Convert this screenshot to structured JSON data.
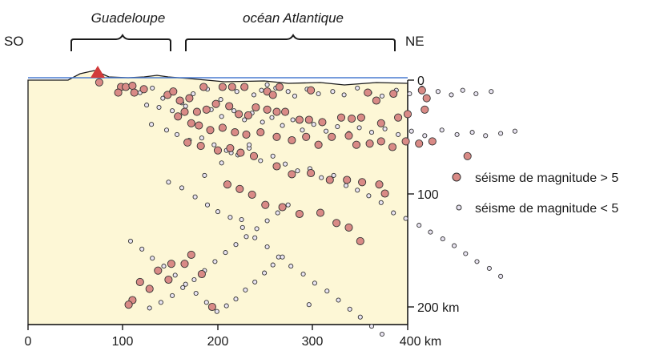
{
  "header": {
    "left_direction": "SO",
    "right_direction": "NE",
    "region_left": "Guadeloupe",
    "region_right": "océan Atlantique"
  },
  "axes": {
    "x_ticks": [
      "0",
      "100",
      "200",
      "300",
      "400 km"
    ],
    "y_ticks": [
      "0",
      "100",
      "200 km"
    ]
  },
  "legend": {
    "large_label": "séisme de magnitude > 5",
    "small_label": "séisme de magnitude < 5"
  },
  "colors": {
    "large_event": "#d98a86",
    "small_event": "#e9e4f2",
    "crust_fill": "#fdf7d6",
    "sea_line": "#4a7bd0",
    "volcano": "#d23b3b"
  },
  "chart_data": {
    "type": "scatter",
    "x_range_km": [
      0,
      400
    ],
    "depth_range_km": [
      0,
      210
    ],
    "volcano_x_km": 72,
    "series": [
      {
        "name": "séisme de magnitude > 5",
        "points": [
          [
            75,
            2
          ],
          [
            98,
            6
          ],
          [
            103,
            6
          ],
          [
            110,
            5
          ],
          [
            95,
            11
          ],
          [
            112,
            11
          ],
          [
            122,
            8
          ],
          [
            147,
            13
          ],
          [
            153,
            10
          ],
          [
            160,
            18
          ],
          [
            170,
            16
          ],
          [
            185,
            6
          ],
          [
            205,
            6
          ],
          [
            215,
            6
          ],
          [
            228,
            6
          ],
          [
            252,
            10
          ],
          [
            258,
            13
          ],
          [
            265,
            6
          ],
          [
            298,
            9
          ],
          [
            358,
            11
          ],
          [
            367,
            18
          ],
          [
            385,
            12
          ],
          [
            415,
            9
          ],
          [
            420,
            16
          ],
          [
            165,
            28
          ],
          [
            178,
            28
          ],
          [
            188,
            26
          ],
          [
            198,
            21
          ],
          [
            212,
            23
          ],
          [
            222,
            30
          ],
          [
            232,
            31
          ],
          [
            240,
            24
          ],
          [
            252,
            26
          ],
          [
            262,
            28
          ],
          [
            271,
            28
          ],
          [
            286,
            35
          ],
          [
            296,
            35
          ],
          [
            310,
            37
          ],
          [
            330,
            33
          ],
          [
            341,
            34
          ],
          [
            351,
            33
          ],
          [
            372,
            38
          ],
          [
            390,
            33
          ],
          [
            400,
            30
          ],
          [
            418,
            26
          ],
          [
            158,
            32
          ],
          [
            172,
            38
          ],
          [
            180,
            40
          ],
          [
            192,
            44
          ],
          [
            205,
            42
          ],
          [
            218,
            46
          ],
          [
            230,
            48
          ],
          [
            245,
            46
          ],
          [
            262,
            50
          ],
          [
            278,
            53
          ],
          [
            293,
            50
          ],
          [
            306,
            57
          ],
          [
            320,
            50
          ],
          [
            338,
            49
          ],
          [
            346,
            57
          ],
          [
            360,
            56
          ],
          [
            372,
            54
          ],
          [
            384,
            59
          ],
          [
            398,
            54
          ],
          [
            412,
            56
          ],
          [
            426,
            54
          ],
          [
            463,
            67
          ],
          [
            168,
            55
          ],
          [
            182,
            58
          ],
          [
            200,
            62
          ],
          [
            213,
            60
          ],
          [
            224,
            64
          ],
          [
            238,
            67
          ],
          [
            262,
            76
          ],
          [
            278,
            83
          ],
          [
            298,
            82
          ],
          [
            318,
            88
          ],
          [
            336,
            88
          ],
          [
            352,
            90
          ],
          [
            370,
            92
          ],
          [
            376,
            100
          ],
          [
            210,
            92
          ],
          [
            223,
            96
          ],
          [
            236,
            101
          ],
          [
            250,
            110
          ],
          [
            268,
            112
          ],
          [
            286,
            118
          ],
          [
            308,
            117
          ],
          [
            325,
            126
          ],
          [
            338,
            130
          ],
          [
            350,
            142
          ],
          [
            172,
            154
          ],
          [
            151,
            162
          ],
          [
            137,
            168
          ],
          [
            118,
            178
          ],
          [
            128,
            184
          ],
          [
            110,
            194
          ],
          [
            148,
            176
          ],
          [
            165,
            162
          ],
          [
            106,
            198
          ],
          [
            194,
            200
          ],
          [
            183,
            171
          ]
        ]
      },
      {
        "name": "séisme de magnitude < 5",
        "points": [
          [
            118,
            11
          ],
          [
            142,
            16
          ],
          [
            131,
            7
          ],
          [
            162,
            20
          ],
          [
            174,
            12
          ],
          [
            189,
            8
          ],
          [
            203,
            17
          ],
          [
            220,
            10
          ],
          [
            238,
            13
          ],
          [
            246,
            9
          ],
          [
            252,
            4
          ],
          [
            261,
            7
          ],
          [
            274,
            10
          ],
          [
            281,
            14
          ],
          [
            294,
            8
          ],
          [
            306,
            12
          ],
          [
            321,
            10
          ],
          [
            333,
            13
          ],
          [
            347,
            7
          ],
          [
            360,
            11
          ],
          [
            373,
            14
          ],
          [
            388,
            9
          ],
          [
            402,
            12
          ],
          [
            415,
            7
          ],
          [
            432,
            10
          ],
          [
            446,
            13
          ],
          [
            458,
            9
          ],
          [
            472,
            12
          ],
          [
            488,
            10
          ],
          [
            125,
            22
          ],
          [
            138,
            24
          ],
          [
            152,
            27
          ],
          [
            166,
            23
          ],
          [
            178,
            29
          ],
          [
            193,
            26
          ],
          [
            204,
            32
          ],
          [
            217,
            27
          ],
          [
            228,
            35
          ],
          [
            236,
            29
          ],
          [
            247,
            37
          ],
          [
            257,
            33
          ],
          [
            268,
            40
          ],
          [
            279,
            35
          ],
          [
            289,
            44
          ],
          [
            301,
            39
          ],
          [
            314,
            45
          ],
          [
            326,
            41
          ],
          [
            338,
            47
          ],
          [
            349,
            42
          ],
          [
            362,
            46
          ],
          [
            376,
            43
          ],
          [
            390,
            48
          ],
          [
            404,
            45
          ],
          [
            418,
            49
          ],
          [
            436,
            44
          ],
          [
            452,
            48
          ],
          [
            468,
            46
          ],
          [
            482,
            49
          ],
          [
            498,
            47
          ],
          [
            513,
            45
          ],
          [
            130,
            39
          ],
          [
            146,
            44
          ],
          [
            157,
            48
          ],
          [
            170,
            53
          ],
          [
            183,
            51
          ],
          [
            196,
            57
          ],
          [
            209,
            62
          ],
          [
            221,
            66
          ],
          [
            233,
            60
          ],
          [
            245,
            71
          ],
          [
            258,
            67
          ],
          [
            271,
            74
          ],
          [
            284,
            80
          ],
          [
            297,
            78
          ],
          [
            309,
            86
          ],
          [
            322,
            84
          ],
          [
            335,
            93
          ],
          [
            347,
            97
          ],
          [
            359,
            102
          ],
          [
            372,
            108
          ],
          [
            385,
            117
          ],
          [
            398,
            122
          ],
          [
            412,
            128
          ],
          [
            424,
            134
          ],
          [
            437,
            140
          ],
          [
            449,
            146
          ],
          [
            461,
            153
          ],
          [
            473,
            160
          ],
          [
            486,
            166
          ],
          [
            498,
            173
          ],
          [
            148,
            90
          ],
          [
            162,
            95
          ],
          [
            176,
            103
          ],
          [
            189,
            110
          ],
          [
            200,
            116
          ],
          [
            213,
            121
          ],
          [
            226,
            130
          ],
          [
            239,
            139
          ],
          [
            252,
            147
          ],
          [
            264,
            156
          ],
          [
            277,
            164
          ],
          [
            290,
            171
          ],
          [
            302,
            179
          ],
          [
            315,
            186
          ],
          [
            327,
            194
          ],
          [
            339,
            202
          ],
          [
            350,
            209
          ],
          [
            362,
            217
          ],
          [
            373,
            224
          ],
          [
            108,
            142
          ],
          [
            120,
            149
          ],
          [
            131,
            157
          ],
          [
            143,
            164
          ],
          [
            155,
            172
          ],
          [
            166,
            180
          ],
          [
            177,
            188
          ],
          [
            188,
            196
          ],
          [
            199,
            204
          ],
          [
            209,
            199
          ],
          [
            219,
            193
          ],
          [
            229,
            185
          ],
          [
            239,
            178
          ],
          [
            249,
            170
          ],
          [
            258,
            163
          ],
          [
            268,
            156
          ],
          [
            128,
            201
          ],
          [
            140,
            196
          ],
          [
            152,
            190
          ],
          [
            163,
            183
          ],
          [
            175,
            176
          ],
          [
            186,
            168
          ],
          [
            197,
            160
          ],
          [
            208,
            152
          ],
          [
            219,
            145
          ],
          [
            230,
            138
          ],
          [
            241,
            131
          ],
          [
            252,
            124
          ],
          [
            263,
            117
          ],
          [
            274,
            110
          ],
          [
            225,
            123
          ],
          [
            296,
            198
          ],
          [
            214,
            64
          ],
          [
            233,
            57
          ],
          [
            204,
            73
          ],
          [
            186,
            84
          ]
        ]
      }
    ]
  }
}
